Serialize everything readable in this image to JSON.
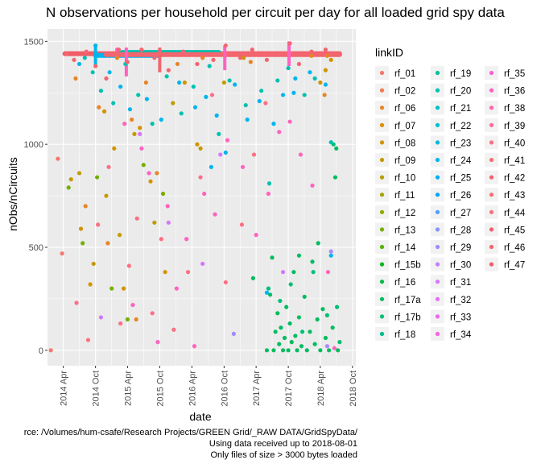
{
  "chart_data": {
    "type": "scatter",
    "title": "N observations per household per circuit per day for all loaded grid spy data",
    "xlabel": "date",
    "ylabel": "nObs/nCircuits",
    "x_ticks": [
      "2014 Apr",
      "2014 Oct",
      "2015 Apr",
      "2015 Oct",
      "2016 Apr",
      "2016 Oct",
      "2017 Apr",
      "2017 Oct",
      "2018 Apr",
      "2018 Oct"
    ],
    "y_ticks": [
      0,
      500,
      1000,
      1500
    ],
    "xlim": [
      "2014-01-01",
      "2018-10-20"
    ],
    "ylim": [
      -75,
      1560
    ],
    "legend": {
      "title": "linkID",
      "placement": "right",
      "entries": [
        {
          "name": "rf_01",
          "color": "#F8766D"
        },
        {
          "name": "rf_02",
          "color": "#F17D50"
        },
        {
          "name": "rf_06",
          "color": "#E88526"
        },
        {
          "name": "rf_07",
          "color": "#DE8C00"
        },
        {
          "name": "rf_08",
          "color": "#D29300"
        },
        {
          "name": "rf_09",
          "color": "#C49A00"
        },
        {
          "name": "rf_10",
          "color": "#B5A000"
        },
        {
          "name": "rf_11",
          "color": "#A3A500"
        },
        {
          "name": "rf_12",
          "color": "#8FAA00"
        },
        {
          "name": "rf_13",
          "color": "#76AF00"
        },
        {
          "name": "rf_14",
          "color": "#53B400"
        },
        {
          "name": "rf_15b",
          "color": "#00B81F"
        },
        {
          "name": "rf_16",
          "color": "#00BB45"
        },
        {
          "name": "rf_17a",
          "color": "#00BD5F"
        },
        {
          "name": "rf_17b",
          "color": "#00BF76"
        },
        {
          "name": "rf_18",
          "color": "#00C08B"
        },
        {
          "name": "rf_19",
          "color": "#00C19E"
        },
        {
          "name": "rf_20",
          "color": "#00C1B0"
        },
        {
          "name": "rf_21",
          "color": "#00C0C1"
        },
        {
          "name": "rf_22",
          "color": "#00BDD1"
        },
        {
          "name": "rf_23",
          "color": "#00BAE0"
        },
        {
          "name": "rf_24",
          "color": "#00B5ED"
        },
        {
          "name": "rf_25",
          "color": "#00AFF9"
        },
        {
          "name": "rf_26",
          "color": "#00A7FF"
        },
        {
          "name": "rf_27",
          "color": "#4C9FFF"
        },
        {
          "name": "rf_28",
          "color": "#8495FF"
        },
        {
          "name": "rf_29",
          "color": "#A68AFF"
        },
        {
          "name": "rf_30",
          "color": "#BF80FF"
        },
        {
          "name": "rf_31",
          "color": "#D376FF"
        },
        {
          "name": "rf_32",
          "color": "#E26EF7"
        },
        {
          "name": "rf_33",
          "color": "#EE67EC"
        },
        {
          "name": "rf_34",
          "color": "#F763DF"
        },
        {
          "name": "rf_35",
          "color": "#FD61D0"
        },
        {
          "name": "rf_36",
          "color": "#FF62BF"
        },
        {
          "name": "rf_38",
          "color": "#FF65AC"
        },
        {
          "name": "rf_39",
          "color": "#FF6A98"
        },
        {
          "name": "rf_40",
          "color": "#FC6F83"
        },
        {
          "name": "rf_41",
          "color": "#F7706E"
        },
        {
          "name": "rf_42",
          "color": "#F4626D"
        },
        {
          "name": "rf_43",
          "color": "#F66E73"
        },
        {
          "name": "rf_44",
          "color": "#FA6E7E"
        },
        {
          "name": "rf_45",
          "color": "#F35F6C"
        },
        {
          "name": "rf_46",
          "color": "#F3656F"
        },
        {
          "name": "rf_47",
          "color": "#F05D68"
        }
      ]
    },
    "series": [
      {
        "name": "rf_01",
        "points": [
          [
            "2014-01-20",
            0
          ],
          [
            "2014-03-01",
            930
          ],
          [
            "2014-03-25",
            470
          ]
        ]
      },
      {
        "name": "rf_06",
        "points": [
          [
            "2014-06-10",
            1320
          ],
          [
            "2014-08-05",
            700
          ],
          [
            "2014-10-20",
            1180
          ],
          [
            "2014-12-10",
            520
          ],
          [
            "2015-02-01",
            1420
          ],
          [
            "2015-04-25",
            1120
          ],
          [
            "2015-05-20",
            150
          ],
          [
            "2015-07-15",
            1300
          ],
          [
            "2015-09-15",
            860
          ],
          [
            "2016-01-10",
            1390
          ],
          [
            "2016-06-01",
            1420
          ],
          [
            "2017-03-01",
            1400
          ],
          [
            "2018-02-10",
            1430
          ],
          [
            "2018-04-25",
            1240
          ],
          [
            "2018-05-10",
            1430
          ]
        ]
      },
      {
        "name": "rf_08",
        "points": [
          [
            "2014-07-10",
            590
          ],
          [
            "2014-09-01",
            320
          ],
          [
            "2014-11-20",
            1160
          ],
          [
            "2015-01-15",
            980
          ],
          [
            "2015-03-10",
            300
          ],
          [
            "2015-06-10",
            1080
          ],
          [
            "2015-08-10",
            820
          ],
          [
            "2015-11-01",
            380
          ],
          [
            "2016-02-20",
            1300
          ],
          [
            "2016-05-01",
            1000
          ],
          [
            "2017-01-20",
            1420
          ],
          [
            "2018-04-01",
            1300
          ],
          [
            "2018-05-01",
            1360
          ],
          [
            "2018-06-01",
            1410
          ]
        ]
      },
      {
        "name": "rf_09",
        "points": [
          [
            "2014-05-15",
            830
          ],
          [
            "2014-07-01",
            860
          ],
          [
            "2014-09-20",
            420
          ],
          [
            "2014-12-01",
            750
          ],
          [
            "2015-02-15",
            560
          ],
          [
            "2015-05-10",
            1050
          ],
          [
            "2015-09-01",
            620
          ],
          [
            "2015-12-15",
            1200
          ],
          [
            "2016-05-20",
            980
          ],
          [
            "2016-10-01",
            1300
          ]
        ]
      },
      {
        "name": "rf_13",
        "points": [
          [
            "2014-05-01",
            790
          ],
          [
            "2014-07-20",
            520
          ],
          [
            "2014-10-10",
            840
          ],
          [
            "2015-01-01",
            300
          ],
          [
            "2015-04-01",
            150
          ],
          [
            "2015-07-01",
            900
          ],
          [
            "2015-10-20",
            760
          ]
        ]
      },
      {
        "name": "rf_17a",
        "points": [
          [
            "2017-03-15",
            350
          ],
          [
            "2017-06-01",
            0
          ],
          [
            "2017-06-20",
            270
          ],
          [
            "2017-07-10",
            0
          ],
          [
            "2017-07-20",
            90
          ],
          [
            "2017-08-01",
            180
          ],
          [
            "2017-08-10",
            30
          ],
          [
            "2017-08-20",
            110
          ],
          [
            "2017-09-01",
            0
          ],
          [
            "2017-09-10",
            60
          ],
          [
            "2017-09-20",
            210
          ],
          [
            "2017-10-01",
            0
          ],
          [
            "2017-10-10",
            130
          ],
          [
            "2017-10-20",
            40
          ],
          [
            "2017-11-01",
            380
          ],
          [
            "2017-11-10",
            70
          ],
          [
            "2017-11-20",
            0
          ],
          [
            "2017-12-01",
            160
          ],
          [
            "2017-12-15",
            20
          ],
          [
            "2018-01-01",
            260
          ],
          [
            "2018-01-15",
            0
          ],
          [
            "2018-02-01",
            90
          ],
          [
            "2018-02-15",
            430
          ],
          [
            "2018-03-01",
            30
          ],
          [
            "2018-03-15",
            150
          ],
          [
            "2018-04-01",
            0
          ],
          [
            "2018-04-15",
            200
          ],
          [
            "2018-05-01",
            60
          ],
          [
            "2018-05-20",
            0
          ],
          [
            "2018-06-10",
            110
          ],
          [
            "2018-06-25",
            840
          ],
          [
            "2018-07-01",
            980
          ],
          [
            "2018-07-10",
            0
          ],
          [
            "2017-07-01",
            450
          ],
          [
            "2017-12-01",
            460
          ],
          [
            "2018-03-20",
            520
          ]
        ]
      },
      {
        "name": "rf_17b",
        "points": [
          [
            "2017-06-10",
            300
          ],
          [
            "2017-08-15",
            240
          ],
          [
            "2017-10-15",
            320
          ],
          [
            "2017-12-20",
            90
          ],
          [
            "2018-02-20",
            380
          ],
          [
            "2018-05-10",
            170
          ],
          [
            "2018-07-05",
            210
          ],
          [
            "2018-07-20",
            40
          ],
          [
            "2018-06-15",
            1000
          ]
        ]
      },
      {
        "name": "rf_20",
        "points": [
          [
            "2014-08-01",
            1420
          ],
          [
            "2014-09-15",
            1350
          ],
          [
            "2014-11-01",
            1260
          ],
          [
            "2015-01-10",
            1200
          ],
          [
            "2015-03-20",
            1390
          ],
          [
            "2015-06-01",
            1240
          ],
          [
            "2015-08-20",
            1100
          ],
          [
            "2015-11-10",
            1330
          ],
          [
            "2016-02-01",
            1150
          ],
          [
            "2016-04-10",
            1280
          ],
          [
            "2016-07-10",
            1380
          ],
          [
            "2016-09-01",
            1050
          ],
          [
            "2016-11-01",
            1310
          ],
          [
            "2017-02-01",
            1190
          ],
          [
            "2017-05-01",
            1260
          ],
          [
            "2017-06-15",
            810
          ],
          [
            "2017-08-01",
            1310
          ],
          [
            "2017-10-01",
            1370
          ],
          [
            "2018-01-01",
            1240
          ],
          [
            "2018-03-01",
            1320
          ],
          [
            "2018-06-01",
            1010
          ]
        ]
      },
      {
        "name": "rf_24",
        "points": [
          [
            "2014-07-01",
            1390
          ],
          [
            "2014-10-01",
            1480
          ],
          [
            "2014-12-20",
            1350
          ],
          [
            "2015-02-20",
            1280
          ],
          [
            "2015-04-15",
            1170
          ],
          [
            "2015-07-20",
            1220
          ],
          [
            "2015-10-10",
            1120
          ],
          [
            "2016-01-20",
            1300
          ],
          [
            "2016-04-20",
            1180
          ],
          [
            "2016-06-20",
            1230
          ],
          [
            "2016-08-20",
            1140
          ],
          [
            "2016-10-10",
            960
          ],
          [
            "2016-12-01",
            1290
          ],
          [
            "2017-02-10",
            1120
          ],
          [
            "2017-04-20",
            1210
          ],
          [
            "2017-07-10",
            1100
          ],
          [
            "2017-09-01",
            1240
          ],
          [
            "2017-11-10",
            1320
          ],
          [
            "2018-02-01",
            1350
          ],
          [
            "2018-05-01",
            1290
          ],
          [
            "2016-07-20",
            890
          ],
          [
            "2017-06-01",
            280
          ],
          [
            "2017-11-01",
            1250
          ],
          [
            "2018-06-01",
            460
          ]
        ]
      },
      {
        "name": "rf_29",
        "points": [
          [
            "2016-11-25",
            80
          ],
          [
            "2018-05-10",
            20
          ],
          [
            "2018-06-01",
            480
          ]
        ]
      },
      {
        "name": "rf_31",
        "points": [
          [
            "2014-11-01",
            160
          ],
          [
            "2015-06-10",
            1050
          ],
          [
            "2015-11-20",
            620
          ],
          [
            "2016-06-01",
            420
          ],
          [
            "2016-09-10",
            950
          ],
          [
            "2017-09-01",
            380
          ]
        ]
      },
      {
        "name": "rf_36",
        "points": [
          [
            "2015-02-01",
            1460
          ],
          [
            "2015-03-15",
            1100
          ],
          [
            "2015-05-01",
            220
          ],
          [
            "2015-06-20",
            980
          ],
          [
            "2015-08-01",
            860
          ],
          [
            "2015-09-20",
            40
          ],
          [
            "2015-11-15",
            700
          ],
          [
            "2016-01-05",
            300
          ],
          [
            "2016-03-01",
            540
          ],
          [
            "2016-04-15",
            20
          ],
          [
            "2016-06-10",
            760
          ],
          [
            "2016-08-10",
            660
          ],
          [
            "2016-10-20",
            1020
          ],
          [
            "2017-01-15",
            890
          ],
          [
            "2017-04-01",
            560
          ],
          [
            "2017-06-10",
            760
          ],
          [
            "2017-08-10",
            1060
          ],
          [
            "2017-10-10",
            1110
          ],
          [
            "2017-12-10",
            950
          ],
          [
            "2018-02-15",
            800
          ],
          [
            "2018-05-15",
            380
          ],
          [
            "2018-06-20",
            10
          ]
        ]
      },
      {
        "name": "rf_40",
        "points": [
          [
            "2014-06-15",
            230
          ],
          [
            "2014-08-20",
            50
          ],
          [
            "2014-10-15",
            610
          ],
          [
            "2014-12-15",
            890
          ],
          [
            "2015-02-20",
            130
          ],
          [
            "2015-04-10",
            410
          ],
          [
            "2015-05-25",
            640
          ],
          [
            "2015-08-20",
            180
          ],
          [
            "2015-10-10",
            540
          ],
          [
            "2015-12-20",
            100
          ],
          [
            "2016-03-10",
            380
          ],
          [
            "2016-05-20",
            840
          ],
          [
            "2016-07-25",
            1240
          ],
          [
            "2016-10-10",
            330
          ],
          [
            "2017-01-10",
            610
          ],
          [
            "2017-03-20",
            950
          ],
          [
            "2017-05-25",
            1200
          ]
        ]
      },
      {
        "name": "rf_46",
        "points": [
          [
            "2014-04-20",
            1440
          ],
          [
            "2014-06-01",
            1410
          ],
          [
            "2014-08-10",
            1450
          ],
          [
            "2014-10-01",
            1380
          ],
          [
            "2014-12-01",
            1320
          ],
          [
            "2015-02-10",
            1460
          ],
          [
            "2015-04-01",
            1400
          ],
          [
            "2015-06-20",
            1460
          ],
          [
            "2015-09-01",
            1420
          ],
          [
            "2015-11-20",
            1360
          ],
          [
            "2016-02-10",
            1450
          ],
          [
            "2016-05-01",
            1390
          ],
          [
            "2016-08-01",
            1410
          ],
          [
            "2016-10-10",
            1480
          ],
          [
            "2017-01-01",
            1420
          ],
          [
            "2017-03-10",
            1460
          ],
          [
            "2017-06-01",
            1410
          ],
          [
            "2017-08-20",
            1440
          ],
          [
            "2017-10-10",
            1490
          ],
          [
            "2017-12-01",
            1390
          ],
          [
            "2018-02-10",
            1450
          ],
          [
            "2018-05-01",
            1460
          ],
          [
            "2018-07-10",
            1440
          ]
        ]
      }
    ]
  },
  "caption": {
    "line1": "rce: /Volumes/hum-csafe/Research Projects/GREEN Grid/_RAW DATA/GridSpyData/",
    "line2": "Using data received up to 2018-08-01",
    "line3": "Only files of size > 3000 bytes loaded"
  }
}
